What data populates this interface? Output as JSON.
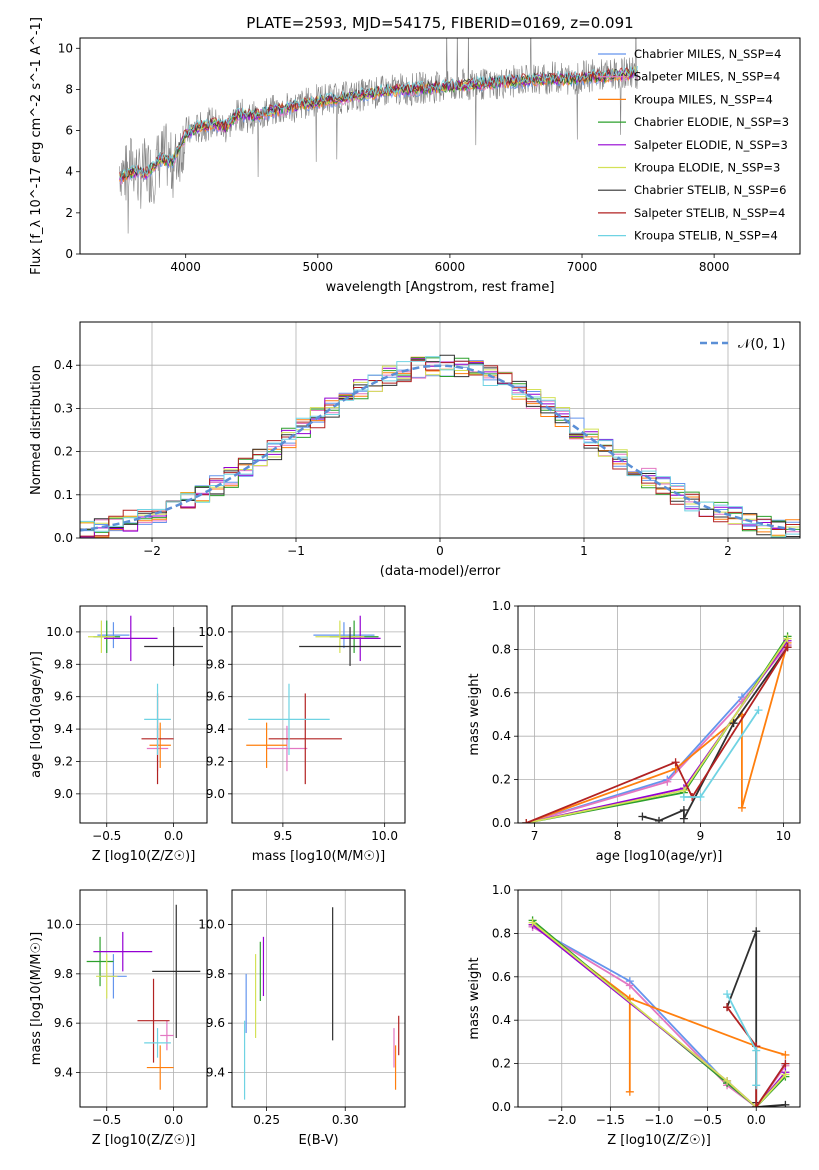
{
  "figure_title": "PLATE=2593, MJD=54175, FIBERID=0169, z=0.091",
  "model_colors": [
    "#6495ed",
    "#e377c2",
    "#ff7f0e",
    "#2ca02c",
    "#9400d3",
    "#d4e157",
    "#303030",
    "#b22222",
    "#6fd3e3"
  ],
  "chart_data": [
    {
      "id": "spectrum",
      "type": "line",
      "title": "PLATE=2593, MJD=54175, FIBERID=0169, z=0.091",
      "xlabel": "wavelength [Angstrom, rest frame]",
      "ylabel": "Flux [f_λ 10^-17 erg cm^-2 s^-1 A^-1]",
      "xlim": [
        3200,
        8650
      ],
      "ylim": [
        0,
        10.5
      ],
      "xticks": [
        "4000",
        "5000",
        "6000",
        "7000",
        "8000"
      ],
      "yticks": [
        "0",
        "2",
        "4",
        "6",
        "8",
        "10"
      ],
      "grid": false,
      "legend_position": "top-right",
      "observed": {
        "name": "",
        "color": "#808080",
        "x": [
          3500,
          3550,
          3600,
          3650,
          3700,
          3750,
          3800,
          3850,
          3900,
          3950,
          4000,
          4100,
          4200,
          4300,
          4400,
          4500,
          4600,
          4700,
          4800,
          4900,
          5000,
          5100,
          5200,
          5300,
          5400,
          5500,
          5600,
          5700,
          5800,
          5900,
          6000,
          6100,
          6200,
          6300,
          6400,
          6500,
          6600,
          6700,
          6800,
          6900,
          7000,
          7100,
          7200,
          7300,
          7400
        ],
        "y": [
          4.3,
          3.8,
          4.5,
          3.6,
          4.2,
          3.9,
          4.6,
          4.8,
          4.2,
          4.9,
          5.9,
          6.1,
          6.4,
          6.1,
          6.8,
          6.6,
          6.9,
          7.0,
          7.1,
          7.3,
          7.5,
          7.6,
          7.6,
          7.7,
          7.8,
          7.9,
          8.0,
          8.0,
          8.1,
          8.1,
          8.1,
          8.2,
          8.3,
          8.2,
          8.3,
          8.4,
          8.5,
          8.5,
          8.6,
          8.5,
          8.6,
          8.7,
          8.7,
          8.8,
          8.8
        ]
      },
      "model_shape": {
        "x": [
          3500,
          3600,
          3700,
          3800,
          3900,
          4000,
          4100,
          4200,
          4300,
          4400,
          4500,
          4700,
          4900,
          5100,
          5300,
          5500,
          5700,
          5900,
          6100,
          6300,
          6500,
          6700,
          6900,
          7100,
          7300,
          7400
        ],
        "y": [
          3.7,
          4.0,
          3.9,
          4.6,
          4.5,
          5.8,
          6.2,
          6.3,
          6.2,
          6.8,
          6.7,
          7.0,
          7.3,
          7.5,
          7.7,
          7.9,
          8.0,
          8.1,
          8.2,
          8.3,
          8.4,
          8.5,
          8.5,
          8.6,
          8.7,
          8.8
        ]
      },
      "legend": [
        "Chabrier MILES, N_SSP=4",
        "Salpeter MILES, N_SSP=4",
        "Kroupa MILES, N_SSP=4",
        "Chabrier ELODIE, N_SSP=3",
        "Salpeter ELODIE, N_SSP=3",
        "Kroupa ELODIE, N_SSP=3",
        "Chabrier STELIB, N_SSP=6",
        "Salpeter STELIB, N_SSP=4",
        "Kroupa STELIB, N_SSP=4"
      ]
    },
    {
      "id": "residuals",
      "type": "line",
      "xlabel": "(data-model)/error",
      "ylabel": "Normed distribution",
      "xlim": [
        -2.5,
        2.5
      ],
      "ylim": [
        0,
        0.5
      ],
      "xticks": [
        "−2",
        "−1",
        "0",
        "1",
        "2"
      ],
      "yticks": [
        "0.0",
        "0.1",
        "0.2",
        "0.3",
        "0.4"
      ],
      "grid": true,
      "legend_position": "top-right",
      "legend": [
        "𝒩(0, 1)"
      ],
      "gaussian": {
        "mean": 0,
        "sigma": 1,
        "color": "#5b8fd6"
      },
      "bin_width": 0.1
    },
    {
      "id": "age-vs-Z",
      "type": "scatter",
      "xlabel": "Z [log10(Z/Z☉)]",
      "ylabel": "age  [log10(age/yr)]",
      "xlim": [
        -0.7,
        0.25
      ],
      "ylim": [
        8.82,
        10.16
      ],
      "xticks": [
        "−0.5",
        "0.0"
      ],
      "yticks": [
        "9.0",
        "9.2",
        "9.4",
        "9.6",
        "9.8",
        "10.0"
      ],
      "grid": true,
      "points": [
        {
          "x": -0.45,
          "y": 9.98,
          "xerr": 0.12,
          "yerr": 0.08
        },
        {
          "x": -0.12,
          "y": 9.28,
          "xerr": 0.08,
          "yerr": 0.14
        },
        {
          "x": -0.1,
          "y": 9.3,
          "xerr": 0.08,
          "yerr": 0.14
        },
        {
          "x": -0.5,
          "y": 9.97,
          "xerr": 0.1,
          "yerr": 0.1
        },
        {
          "x": -0.32,
          "y": 9.96,
          "xerr": 0.2,
          "yerr": 0.14
        },
        {
          "x": -0.54,
          "y": 9.97,
          "xerr": 0.1,
          "yerr": 0.1
        },
        {
          "x": 0.0,
          "y": 9.91,
          "xerr": 0.22,
          "yerr": 0.12
        },
        {
          "x": -0.12,
          "y": 9.34,
          "xerr": 0.12,
          "yerr": 0.28
        },
        {
          "x": -0.12,
          "y": 9.46,
          "xerr": 0.1,
          "yerr": 0.22
        }
      ]
    },
    {
      "id": "age-vs-mass",
      "type": "scatter",
      "xlabel": "mass [log10(M/M☉)]",
      "ylabel": "",
      "xlim": [
        9.25,
        10.1
      ],
      "ylim": [
        8.82,
        10.16
      ],
      "xticks": [
        "9.5",
        "10.0"
      ],
      "yticks": [
        "9.0",
        "9.2",
        "9.4",
        "9.6",
        "9.8",
        "10.0"
      ],
      "grid": true,
      "points": [
        {
          "x": 9.8,
          "y": 9.98,
          "xerr": 0.15,
          "yerr": 0.08
        },
        {
          "x": 9.52,
          "y": 9.28,
          "xerr": 0.1,
          "yerr": 0.14
        },
        {
          "x": 9.42,
          "y": 9.3,
          "xerr": 0.1,
          "yerr": 0.14
        },
        {
          "x": 9.85,
          "y": 9.97,
          "xerr": 0.12,
          "yerr": 0.1
        },
        {
          "x": 9.88,
          "y": 9.96,
          "xerr": 0.1,
          "yerr": 0.14
        },
        {
          "x": 9.78,
          "y": 9.97,
          "xerr": 0.12,
          "yerr": 0.1
        },
        {
          "x": 9.83,
          "y": 9.91,
          "xerr": 0.25,
          "yerr": 0.12
        },
        {
          "x": 9.61,
          "y": 9.34,
          "xerr": 0.18,
          "yerr": 0.28
        },
        {
          "x": 9.53,
          "y": 9.46,
          "xerr": 0.2,
          "yerr": 0.22
        }
      ]
    },
    {
      "id": "weight-vs-age",
      "type": "line",
      "xlabel": "age  [log10(age/yr)]",
      "ylabel": "mass weight",
      "xlim": [
        6.8,
        10.2
      ],
      "ylim": [
        0,
        1.0
      ],
      "xticks": [
        "7",
        "8",
        "9",
        "10"
      ],
      "yticks": [
        "0.0",
        "0.2",
        "0.4",
        "0.6",
        "0.8",
        "1.0"
      ],
      "grid": true,
      "series": [
        {
          "x": [
            6.9,
            8.6,
            9.5,
            10.05
          ],
          "y": [
            0.0,
            0.2,
            0.58,
            0.82
          ]
        },
        {
          "x": [
            6.9,
            8.6,
            9.5,
            10.05
          ],
          "y": [
            0.0,
            0.19,
            0.56,
            0.82
          ]
        },
        {
          "x": [
            6.9,
            8.7,
            9.5,
            9.5,
            10.05
          ],
          "y": [
            0.0,
            0.25,
            0.5,
            0.07,
            0.83
          ]
        },
        {
          "x": [
            6.9,
            8.8,
            10.05
          ],
          "y": [
            0.0,
            0.14,
            0.86
          ]
        },
        {
          "x": [
            6.9,
            8.8,
            10.05
          ],
          "y": [
            0.0,
            0.16,
            0.84
          ]
        },
        {
          "x": [
            6.9,
            8.8,
            10.05
          ],
          "y": [
            0.0,
            0.15,
            0.85
          ]
        },
        {
          "x": [
            8.3,
            8.5,
            8.8,
            8.8,
            9.4,
            10.05
          ],
          "y": [
            0.03,
            0.01,
            0.06,
            0.02,
            0.46,
            0.81
          ]
        },
        {
          "x": [
            6.9,
            8.7,
            8.9,
            10.05
          ],
          "y": [
            0.0,
            0.28,
            0.12,
            0.81
          ]
        },
        {
          "x": [
            8.8,
            9.0,
            9.7
          ],
          "y": [
            0.12,
            0.12,
            0.52
          ]
        }
      ]
    },
    {
      "id": "mass-vs-Z",
      "type": "scatter",
      "xlabel": "Z [log10(Z/Z☉)]",
      "ylabel": "mass [log10(M/M☉)]",
      "xlim": [
        -0.7,
        0.25
      ],
      "ylim": [
        9.26,
        10.14
      ],
      "xticks": [
        "−0.5",
        "0.0"
      ],
      "yticks": [
        "9.4",
        "9.6",
        "9.8",
        "10.0"
      ],
      "grid": true,
      "points": [
        {
          "x": -0.45,
          "y": 9.79,
          "xerr": 0.1,
          "yerr": 0.09
        },
        {
          "x": -0.05,
          "y": 9.55,
          "xerr": 0.05,
          "yerr": 0.06
        },
        {
          "x": -0.1,
          "y": 9.42,
          "xerr": 0.1,
          "yerr": 0.09
        },
        {
          "x": -0.55,
          "y": 9.85,
          "xerr": 0.1,
          "yerr": 0.1
        },
        {
          "x": -0.38,
          "y": 9.89,
          "xerr": 0.22,
          "yerr": 0.08
        },
        {
          "x": -0.5,
          "y": 9.79,
          "xerr": 0.08,
          "yerr": 0.09
        },
        {
          "x": 0.02,
          "y": 9.81,
          "xerr": 0.18,
          "yerr": 0.27
        },
        {
          "x": -0.15,
          "y": 9.61,
          "xerr": 0.12,
          "yerr": 0.17
        },
        {
          "x": -0.12,
          "y": 9.52,
          "xerr": 0.1,
          "yerr": 0.06
        }
      ]
    },
    {
      "id": "mass-vs-ebv",
      "type": "scatter",
      "xlabel": "E(B-V)",
      "ylabel": "",
      "xlim": [
        0.228,
        0.338
      ],
      "ylim": [
        9.26,
        10.14
      ],
      "xticks": [
        "0.25",
        "0.30"
      ],
      "yticks": [
        "9.4",
        "9.6",
        "9.8",
        "10.0"
      ],
      "grid": true,
      "points": [
        {
          "x": 0.237,
          "y": 9.68,
          "xerr": 0,
          "yerr": 0.12
        },
        {
          "x": 0.331,
          "y": 9.5,
          "xerr": 0,
          "yerr": 0.08
        },
        {
          "x": 0.332,
          "y": 9.42,
          "xerr": 0,
          "yerr": 0.09
        },
        {
          "x": 0.246,
          "y": 9.81,
          "xerr": 0,
          "yerr": 0.12
        },
        {
          "x": 0.248,
          "y": 9.83,
          "xerr": 0,
          "yerr": 0.12
        },
        {
          "x": 0.243,
          "y": 9.71,
          "xerr": 0,
          "yerr": 0.17
        },
        {
          "x": 0.292,
          "y": 9.8,
          "xerr": 0,
          "yerr": 0.27
        },
        {
          "x": 0.334,
          "y": 9.55,
          "xerr": 0,
          "yerr": 0.08
        },
        {
          "x": 0.236,
          "y": 9.45,
          "xerr": 0,
          "yerr": 0.16
        }
      ]
    },
    {
      "id": "weight-vs-Z",
      "type": "line",
      "xlabel": "Z [log10(Z/Z☉)]",
      "ylabel": "mass weight",
      "xlim": [
        -2.45,
        0.45
      ],
      "ylim": [
        0,
        1.0
      ],
      "xticks": [
        "−2.0",
        "−1.5",
        "−1.0",
        "−0.5",
        "0.0"
      ],
      "yticks": [
        "0.0",
        "0.2",
        "0.4",
        "0.6",
        "0.8",
        "1.0"
      ],
      "grid": true,
      "series": [
        {
          "x": [
            -2.3,
            -1.3,
            -0.3,
            0.0,
            0.3
          ],
          "y": [
            0.83,
            0.58,
            0.11,
            0.0,
            0.2
          ]
        },
        {
          "x": [
            -2.3,
            -1.3,
            -0.3,
            0.0,
            0.3
          ],
          "y": [
            0.83,
            0.56,
            0.1,
            0.0,
            0.19
          ]
        },
        {
          "x": [
            -2.3,
            -1.3,
            -1.3,
            -1.3,
            0.0,
            0.3
          ],
          "y": [
            0.84,
            0.5,
            0.07,
            0.5,
            0.28,
            0.24
          ]
        },
        {
          "x": [
            -2.3,
            -0.3,
            0.0,
            0.3
          ],
          "y": [
            0.86,
            0.11,
            0.0,
            0.14
          ]
        },
        {
          "x": [
            -2.3,
            -0.3,
            0.0,
            0.3
          ],
          "y": [
            0.84,
            0.12,
            0.0,
            0.16
          ]
        },
        {
          "x": [
            -2.3,
            -0.3,
            0.0,
            0.3
          ],
          "y": [
            0.85,
            0.12,
            0.0,
            0.15
          ]
        },
        {
          "x": [
            -0.3,
            0.0,
            0.0,
            0.0,
            0.3
          ],
          "y": [
            0.46,
            0.81,
            0.02,
            0.0,
            0.01
          ]
        },
        {
          "x": [
            -0.3,
            0.0,
            0.0,
            0.3
          ],
          "y": [
            0.46,
            0.28,
            0.0,
            0.2
          ]
        },
        {
          "x": [
            -0.3,
            0.0,
            0.0
          ],
          "y": [
            0.52,
            0.26,
            0.1
          ]
        }
      ]
    }
  ]
}
